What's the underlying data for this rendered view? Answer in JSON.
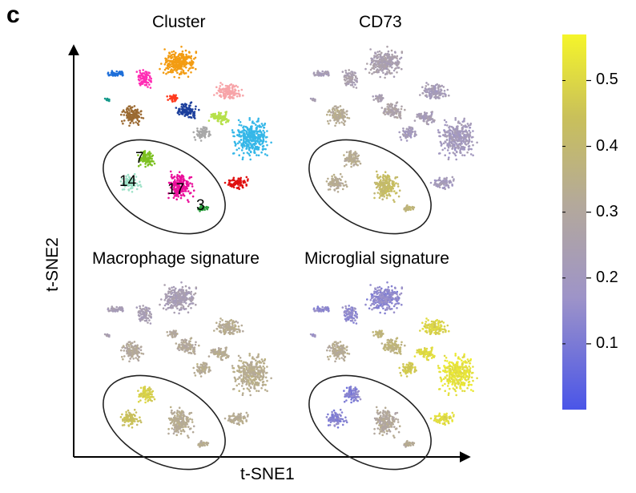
{
  "figure": {
    "panel_label": "c",
    "panel_titles": [
      "Cluster",
      "CD73",
      "Macrophage signature",
      "Microglial signature"
    ],
    "xlabel": "t-SNE1",
    "ylabel": "t-SNE2"
  },
  "chart_data": {
    "type": "scatter",
    "subplots": [
      {
        "title": "Cluster",
        "color_mode": "categorical",
        "annotations": [
          "7",
          "14",
          "17",
          "3"
        ],
        "ellipse": true
      },
      {
        "title": "CD73",
        "color_mode": "continuous",
        "ellipse": true
      },
      {
        "title": "Macrophage signature",
        "color_mode": "continuous",
        "ellipse": true
      },
      {
        "title": "Microglial signature",
        "color_mode": "continuous",
        "ellipse": true
      }
    ],
    "colorbar": {
      "min": 0.0,
      "max": 0.57,
      "ticks": [
        0.1,
        0.2,
        0.3,
        0.4,
        0.5
      ],
      "tick_labels": [
        "0.1",
        "0.2",
        "0.3",
        "0.4",
        "0.5"
      ],
      "colors": [
        "#4a55e8",
        "#9e94c8",
        "#b4a99a",
        "#c9c05a",
        "#f5f52a"
      ]
    },
    "clusters": [
      {
        "id": "orange-top",
        "color": "#f39c12"
      },
      {
        "id": "blue-left",
        "color": "#1e6fd9"
      },
      {
        "id": "magenta-top",
        "color": "#ff2db4"
      },
      {
        "id": "brown",
        "color": "#9b6a32"
      },
      {
        "id": "navy",
        "color": "#1c3f9c"
      },
      {
        "id": "red-small",
        "color": "#ff3b1f"
      },
      {
        "id": "pink",
        "color": "#f7a4a8"
      },
      {
        "id": "lime",
        "color": "#b6e04a"
      },
      {
        "id": "cyan",
        "color": "#35b7e8"
      },
      {
        "id": "grey",
        "color": "#a8a8a8"
      },
      {
        "id": "red-bottom",
        "color": "#e01010"
      },
      {
        "id": "7",
        "color": "#7cc020"
      },
      {
        "id": "14",
        "color": "#9ee2c8"
      },
      {
        "id": "17",
        "color": "#ea0e9a"
      },
      {
        "id": "3",
        "color": "#2fa040"
      },
      {
        "id": "teal-small",
        "color": "#14998a"
      }
    ]
  }
}
